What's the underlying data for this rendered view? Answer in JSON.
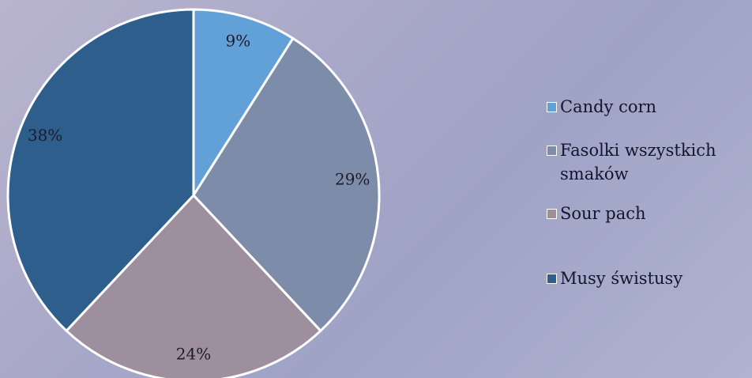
{
  "chart_data": {
    "type": "pie",
    "categories": [
      "Candy corn",
      "Fasolki wszystkich smaków",
      "Sour pach",
      "Musy świstusy"
    ],
    "values": [
      9,
      29,
      24,
      38
    ],
    "value_labels": [
      "9%",
      "29%",
      "24%",
      "38%"
    ],
    "colors": [
      "#62a0d8",
      "#7d8ca9",
      "#9e8f9f",
      "#2d5e8c"
    ],
    "legend": "right"
  }
}
